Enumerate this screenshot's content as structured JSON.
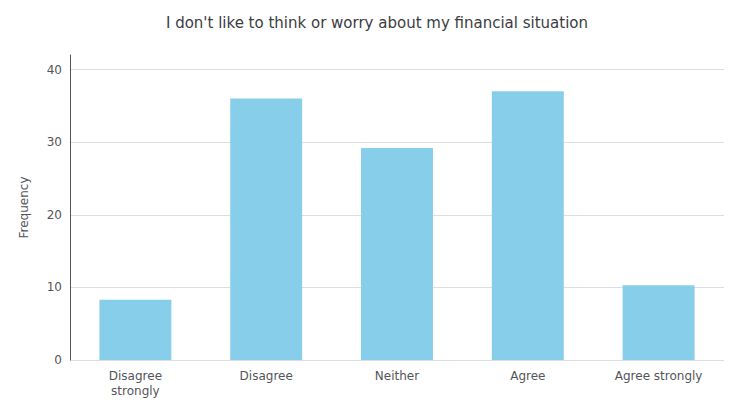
{
  "chart_data": {
    "type": "bar",
    "title": "I don't like to think or worry about my financial situation",
    "categories": [
      "Disagree\nstrongly",
      "Disagree",
      "Neither",
      "Agree",
      "Agree strongly"
    ],
    "values": [
      8.3,
      36.0,
      29.2,
      37.0,
      10.3
    ],
    "color": "#87CEEB",
    "ylabel": "Frequency",
    "ylim": [
      0,
      42
    ],
    "yticks": [
      0,
      10,
      20,
      30,
      40
    ],
    "grid": true
  }
}
